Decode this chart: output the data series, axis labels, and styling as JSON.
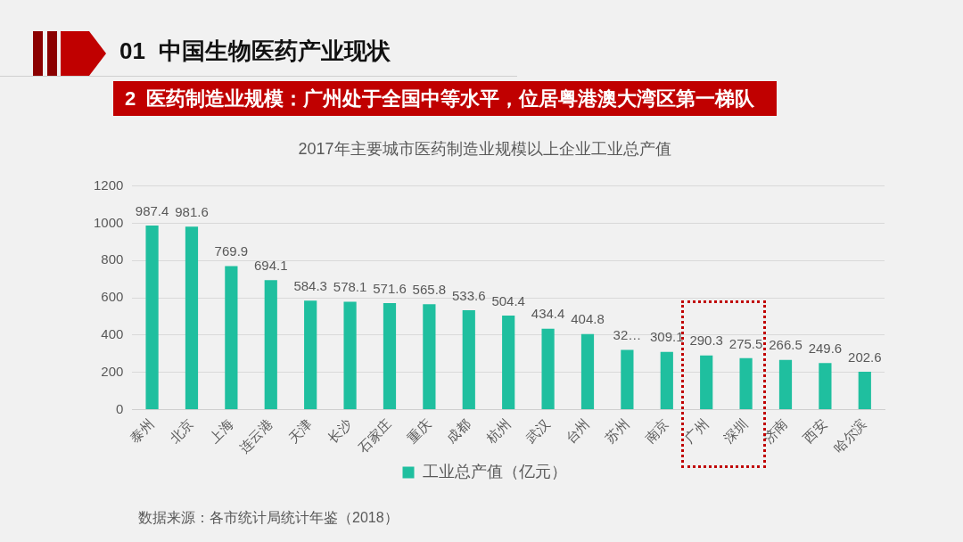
{
  "chart_data": {
    "type": "bar",
    "title": "2017年主要城市医药制造业规模以上企业工业总产值",
    "categories": [
      "泰州",
      "北京",
      "上海",
      "连云港",
      "天津",
      "长沙",
      "石家庄",
      "重庆",
      "成都",
      "杭州",
      "武汉",
      "台州",
      "苏州",
      "南京",
      "广州",
      "深圳",
      "济南",
      "西安",
      "哈尔滨"
    ],
    "series": [
      {
        "name": "工业总产值（亿元）",
        "color": "#1fbf9f",
        "values": [
          987.4,
          981.6,
          769.9,
          694.1,
          584.3,
          578.1,
          571.6,
          565.8,
          533.6,
          504.4,
          434.4,
          404.8,
          320,
          309.1,
          290.3,
          275.5,
          266.5,
          249.6,
          202.6
        ],
        "value_labels": [
          "987.4",
          "981.6",
          "769.9",
          "694.1",
          "584.3",
          "578.1",
          "571.6",
          "565.8",
          "533.6",
          "504.4",
          "434.4",
          "404.8",
          "32…",
          "309.1",
          "290.3",
          "275.5",
          "266.5",
          "249.6",
          "202.6"
        ]
      }
    ],
    "ylim": [
      0,
      1200
    ],
    "yticks": [
      0,
      200,
      400,
      600,
      800,
      1000,
      1200
    ],
    "grid": "y",
    "legend": "bottom",
    "annotations": [
      "01 中国生物医药产业现状",
      "2 医药制造业规模：广州处于全国中等水平，位居粤港澳大湾区第一梯队",
      "数据来源：各市统计局统计年鉴（2018）"
    ]
  }
}
